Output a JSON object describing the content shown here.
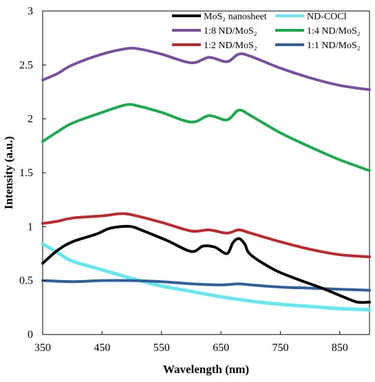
{
  "chart_data": {
    "type": "line",
    "xlabel": "Wavelength (nm)",
    "ylabel": "Intensity (a.u.)",
    "xlim": [
      350,
      900
    ],
    "ylim": [
      0,
      3
    ],
    "xticks": [
      "350",
      "450",
      "550",
      "650",
      "750",
      "850"
    ],
    "yticks": [
      "0",
      "0.5",
      "1",
      "1.5",
      "2",
      "2.5",
      "3"
    ],
    "grid": false,
    "legend_position": "top",
    "series": [
      {
        "name": "MoS₂ nanosheet",
        "color": "#000000",
        "x": [
          350,
          375,
          400,
          440,
          460,
          480,
          500,
          520,
          560,
          600,
          620,
          640,
          660,
          670,
          680,
          690,
          700,
          740,
          780,
          820,
          860,
          880,
          900
        ],
        "y": [
          0.66,
          0.78,
          0.86,
          0.93,
          0.98,
          1.0,
          1.0,
          0.96,
          0.87,
          0.77,
          0.82,
          0.81,
          0.75,
          0.85,
          0.89,
          0.84,
          0.74,
          0.6,
          0.51,
          0.43,
          0.34,
          0.3,
          0.3
        ]
      },
      {
        "name": "ND-COCl",
        "color": "#66e8f0",
        "x": [
          350,
          375,
          400,
          450,
          500,
          550,
          600,
          650,
          700,
          750,
          800,
          850,
          900
        ],
        "y": [
          0.84,
          0.76,
          0.68,
          0.6,
          0.52,
          0.45,
          0.4,
          0.35,
          0.31,
          0.28,
          0.26,
          0.24,
          0.23
        ]
      },
      {
        "name": "1:8 ND/MoS₂",
        "color": "#7a4fa0",
        "x": [
          350,
          375,
          400,
          450,
          490,
          510,
          550,
          600,
          630,
          660,
          680,
          700,
          750,
          800,
          850,
          900
        ],
        "y": [
          2.36,
          2.42,
          2.5,
          2.6,
          2.65,
          2.65,
          2.6,
          2.52,
          2.57,
          2.53,
          2.6,
          2.58,
          2.47,
          2.38,
          2.31,
          2.27
        ]
      },
      {
        "name": "1:4 ND/MoS₂",
        "color": "#1aab4f",
        "x": [
          350,
          375,
          400,
          450,
          490,
          510,
          550,
          600,
          630,
          660,
          680,
          700,
          750,
          800,
          850,
          900
        ],
        "y": [
          1.79,
          1.88,
          1.96,
          2.06,
          2.13,
          2.12,
          2.06,
          1.97,
          2.03,
          1.99,
          2.08,
          2.03,
          1.87,
          1.74,
          1.62,
          1.52
        ]
      },
      {
        "name": "1:2 ND/MoS₂",
        "color": "#c0282e",
        "x": [
          350,
          375,
          400,
          450,
          480,
          500,
          550,
          600,
          630,
          660,
          680,
          700,
          750,
          800,
          850,
          900
        ],
        "y": [
          1.03,
          1.05,
          1.08,
          1.1,
          1.12,
          1.11,
          1.04,
          0.96,
          0.97,
          0.94,
          0.97,
          0.94,
          0.86,
          0.79,
          0.74,
          0.72
        ]
      },
      {
        "name": "1:1 ND/MoS₂",
        "color": "#2f5f9e",
        "x": [
          350,
          400,
          450,
          500,
          550,
          600,
          650,
          680,
          700,
          750,
          800,
          850,
          900
        ],
        "y": [
          0.5,
          0.49,
          0.5,
          0.5,
          0.49,
          0.47,
          0.46,
          0.47,
          0.46,
          0.44,
          0.43,
          0.42,
          0.41
        ]
      }
    ]
  }
}
